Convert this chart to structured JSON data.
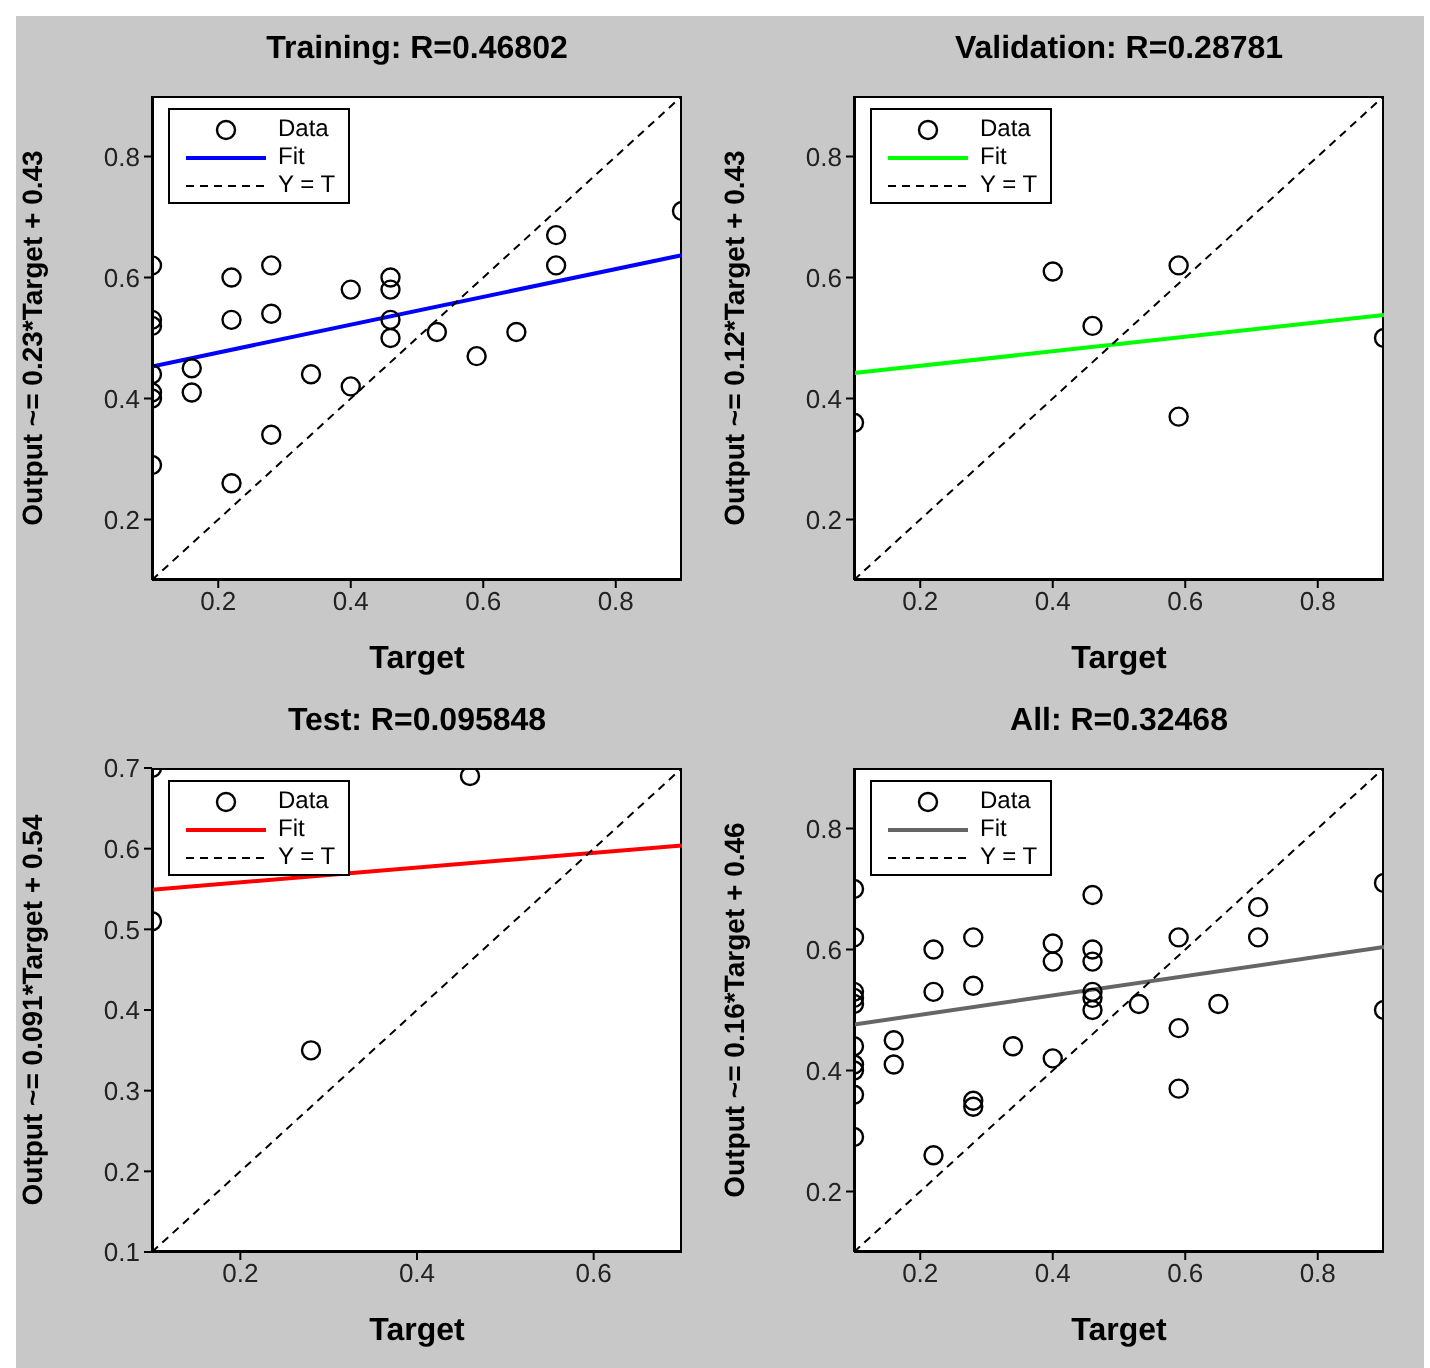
{
  "chart_data": [
    {
      "type": "scatter",
      "title": "Training: R=0.46802",
      "xlabel": "Target",
      "ylabel": "Output ~= 0.23*Target + 0.43",
      "xlim": [
        0.1,
        0.9
      ],
      "ylim": [
        0.1,
        0.9
      ],
      "xticks": [
        0.2,
        0.4,
        0.6,
        0.8
      ],
      "yticks": [
        0.2,
        0.4,
        0.6,
        0.8
      ],
      "legend": "top left",
      "series": [
        {
          "name": "Data",
          "type": "scatter",
          "color": "#000000",
          "marker": "circle",
          "x": [
            0.1,
            0.1,
            0.1,
            0.1,
            0.1,
            0.1,
            0.1,
            0.16,
            0.16,
            0.22,
            0.22,
            0.22,
            0.28,
            0.28,
            0.28,
            0.34,
            0.4,
            0.4,
            0.46,
            0.46,
            0.46,
            0.46,
            0.53,
            0.59,
            0.65,
            0.71,
            0.71,
            0.9
          ],
          "values": [
            0.62,
            0.53,
            0.52,
            0.44,
            0.41,
            0.4,
            0.29,
            0.45,
            0.41,
            0.6,
            0.53,
            0.26,
            0.62,
            0.54,
            0.34,
            0.44,
            0.58,
            0.42,
            0.6,
            0.58,
            0.53,
            0.5,
            0.51,
            0.47,
            0.51,
            0.67,
            0.62,
            0.71
          ]
        },
        {
          "name": "Fit",
          "type": "line",
          "color": "#0000ff",
          "line_style": "solid",
          "x": [
            0.1,
            0.9
          ],
          "values": [
            0.453,
            0.637
          ]
        },
        {
          "name": "Y = T",
          "type": "line",
          "color": "#000000",
          "line_style": "dashed",
          "x": [
            0.1,
            0.9
          ],
          "values": [
            0.1,
            0.9
          ]
        }
      ]
    },
    {
      "type": "scatter",
      "title": "Validation: R=0.28781",
      "xlabel": "Target",
      "ylabel": "Output ~= 0.12*Target + 0.43",
      "xlim": [
        0.1,
        0.9
      ],
      "ylim": [
        0.1,
        0.9
      ],
      "xticks": [
        0.2,
        0.4,
        0.6,
        0.8
      ],
      "yticks": [
        0.2,
        0.4,
        0.6,
        0.8
      ],
      "legend": "top left",
      "series": [
        {
          "name": "Data",
          "type": "scatter",
          "color": "#000000",
          "marker": "circle",
          "x": [
            0.1,
            0.4,
            0.46,
            0.59,
            0.59,
            0.9
          ],
          "values": [
            0.36,
            0.61,
            0.52,
            0.62,
            0.37,
            0.5
          ]
        },
        {
          "name": "Fit",
          "type": "line",
          "color": "#00ff00",
          "line_style": "solid",
          "x": [
            0.1,
            0.9
          ],
          "values": [
            0.442,
            0.538
          ]
        },
        {
          "name": "Y = T",
          "type": "line",
          "color": "#000000",
          "line_style": "dashed",
          "x": [
            0.1,
            0.9
          ],
          "values": [
            0.1,
            0.9
          ]
        }
      ]
    },
    {
      "type": "scatter",
      "title": "Test: R=0.095848",
      "xlabel": "Target",
      "ylabel": "Output ~= 0.091*Target + 0.54",
      "xlim": [
        0.1,
        0.7
      ],
      "ylim": [
        0.1,
        0.7
      ],
      "xticks": [
        0.2,
        0.4,
        0.6
      ],
      "yticks": [
        0.1,
        0.2,
        0.3,
        0.4,
        0.5,
        0.6,
        0.7
      ],
      "legend": "top left",
      "series": [
        {
          "name": "Data",
          "type": "scatter",
          "color": "#000000",
          "marker": "circle",
          "x": [
            0.1,
            0.1,
            0.28,
            0.46
          ],
          "values": [
            0.7,
            0.51,
            0.35,
            0.69
          ]
        },
        {
          "name": "Fit",
          "type": "line",
          "color": "#ff0000",
          "line_style": "solid",
          "x": [
            0.1,
            0.7
          ],
          "values": [
            0.549,
            0.604
          ]
        },
        {
          "name": "Y = T",
          "type": "line",
          "color": "#000000",
          "line_style": "dashed",
          "x": [
            0.1,
            0.7
          ],
          "values": [
            0.1,
            0.7
          ]
        }
      ]
    },
    {
      "type": "scatter",
      "title": "All: R=0.32468",
      "xlabel": "Target",
      "ylabel": "Output ~= 0.16*Target + 0.46",
      "xlim": [
        0.1,
        0.9
      ],
      "ylim": [
        0.1,
        0.9
      ],
      "xticks": [
        0.2,
        0.4,
        0.6,
        0.8
      ],
      "yticks": [
        0.2,
        0.4,
        0.6,
        0.8
      ],
      "legend": "top left",
      "series": [
        {
          "name": "Data",
          "type": "scatter",
          "color": "#000000",
          "marker": "circle",
          "x": [
            0.1,
            0.1,
            0.1,
            0.1,
            0.1,
            0.1,
            0.1,
            0.16,
            0.16,
            0.22,
            0.22,
            0.22,
            0.28,
            0.28,
            0.28,
            0.34,
            0.4,
            0.4,
            0.46,
            0.46,
            0.46,
            0.46,
            0.53,
            0.59,
            0.65,
            0.71,
            0.71,
            0.9,
            0.1,
            0.4,
            0.46,
            0.59,
            0.59,
            0.9,
            0.1,
            0.1,
            0.28,
            0.46
          ],
          "values": [
            0.62,
            0.53,
            0.52,
            0.44,
            0.41,
            0.4,
            0.29,
            0.45,
            0.41,
            0.6,
            0.53,
            0.26,
            0.62,
            0.54,
            0.34,
            0.44,
            0.58,
            0.42,
            0.6,
            0.58,
            0.53,
            0.5,
            0.51,
            0.47,
            0.51,
            0.67,
            0.62,
            0.71,
            0.36,
            0.61,
            0.52,
            0.62,
            0.37,
            0.5,
            0.7,
            0.51,
            0.35,
            0.69
          ]
        },
        {
          "name": "Fit",
          "type": "line",
          "color": "#666666",
          "line_style": "solid",
          "x": [
            0.1,
            0.9
          ],
          "values": [
            0.476,
            0.604
          ]
        },
        {
          "name": "Y = T",
          "type": "line",
          "color": "#000000",
          "line_style": "dashed",
          "x": [
            0.1,
            0.9
          ],
          "values": [
            0.1,
            0.9
          ]
        }
      ]
    }
  ]
}
